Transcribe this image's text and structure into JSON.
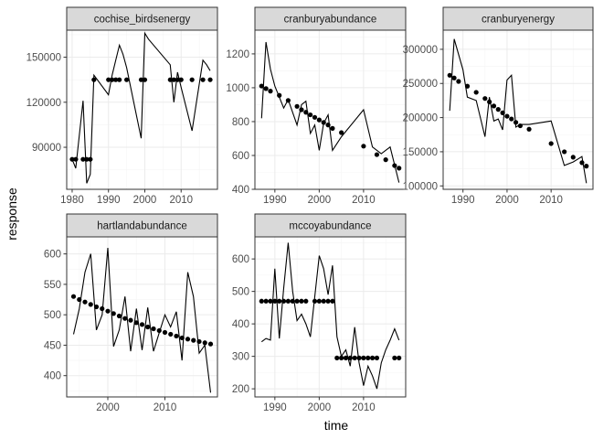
{
  "chart_data": {
    "type": "line",
    "xlabel": "time",
    "ylabel": "response",
    "grid": true,
    "legend": "none",
    "panels": [
      {
        "name": "cochise_birdsenergy",
        "xlim": [
          1978.5,
          2020
        ],
        "ylim": [
          62000,
          168000
        ],
        "xticks": [
          1980,
          1990,
          2000,
          2010
        ],
        "yticks": [
          90000,
          120000,
          150000
        ],
        "ytick_labels": [
          "90000",
          "120000",
          "150000"
        ],
        "line": {
          "x": [
            1980,
            1981,
            1983,
            1984,
            1985,
            1986,
            1990,
            1991,
            1992,
            1993,
            1994,
            1995,
            1999,
            2000,
            2001,
            2007,
            2008,
            2009,
            2010,
            2013,
            2016,
            2017,
            2018
          ],
          "y": [
            82000,
            76000,
            121000,
            66000,
            72000,
            138000,
            125000,
            138000,
            148000,
            158000,
            152000,
            143000,
            96000,
            166000,
            162000,
            145000,
            120000,
            140000,
            130000,
            101000,
            148000,
            145000,
            141000
          ]
        },
        "points": {
          "x": [
            1980,
            1981,
            1983,
            1984,
            1985,
            1986,
            1990,
            1991,
            1992,
            1993,
            1995,
            1999,
            2000,
            2007,
            2008,
            2009,
            2010,
            2013,
            2016,
            2018
          ],
          "y": [
            82000,
            82000,
            82000,
            82000,
            82000,
            135000,
            135000,
            135000,
            135000,
            135000,
            135000,
            135000,
            135000,
            135000,
            135000,
            135000,
            135000,
            135000,
            135000,
            135000
          ]
        }
      },
      {
        "name": "cranburyabundance",
        "xlim": [
          1985.5,
          2019.5
        ],
        "ylim": [
          400,
          1340
        ],
        "xticks": [
          1990,
          2000,
          2010
        ],
        "yticks": [
          400,
          600,
          800,
          1000,
          1200
        ],
        "ytick_labels": [
          "400",
          "600",
          "800",
          "1000",
          "1200"
        ],
        "line": {
          "x": [
            1987,
            1988,
            1989,
            1990,
            1992,
            1993,
            1995,
            1996,
            1997,
            1998,
            1999,
            2000,
            2001,
            2002,
            2003,
            2005,
            2010,
            2012,
            2014,
            2016,
            2018
          ],
          "y": [
            820,
            1270,
            1110,
            1010,
            880,
            930,
            780,
            900,
            920,
            730,
            780,
            630,
            790,
            840,
            630,
            710,
            870,
            650,
            610,
            650,
            440
          ]
        },
        "points": {
          "x": [
            1987,
            1988,
            1989,
            1991,
            1993,
            1995,
            1996,
            1997,
            1998,
            1999,
            2000,
            2001,
            2002,
            2003,
            2005,
            2010,
            2013,
            2015,
            2017,
            2018
          ],
          "y": [
            1010,
            995,
            980,
            955,
            925,
            890,
            870,
            855,
            840,
            825,
            810,
            795,
            780,
            760,
            735,
            655,
            605,
            575,
            540,
            525
          ]
        }
      },
      {
        "name": "cranburyenergy",
        "xlim": [
          1985.5,
          2019.5
        ],
        "ylim": [
          95000,
          328000
        ],
        "xticks": [
          1990,
          2000,
          2010
        ],
        "yticks": [
          100000,
          150000,
          200000,
          250000,
          300000
        ],
        "ytick_labels": [
          "100000",
          "150000",
          "200000",
          "250000",
          "300000"
        ],
        "line": {
          "x": [
            1987,
            1988,
            1990,
            1991,
            1993,
            1995,
            1996,
            1997,
            1998,
            1999,
            2000,
            2001,
            2002,
            2003,
            2005,
            2010,
            2013,
            2015,
            2017,
            2018
          ],
          "y": [
            210000,
            315000,
            270000,
            230000,
            225000,
            172000,
            230000,
            195000,
            198000,
            182000,
            255000,
            262000,
            186000,
            190000,
            190000,
            195000,
            130000,
            135000,
            143000,
            104000
          ]
        },
        "points": {
          "x": [
            1987,
            1988,
            1989,
            1991,
            1993,
            1995,
            1996,
            1997,
            1998,
            1999,
            2000,
            2001,
            2002,
            2003,
            2005,
            2010,
            2013,
            2015,
            2017,
            2018
          ],
          "y": [
            262000,
            258000,
            253000,
            246000,
            237000,
            228000,
            223000,
            217000,
            212000,
            207000,
            202000,
            198000,
            193000,
            188000,
            183000,
            162000,
            150000,
            142000,
            134000,
            129000
          ]
        }
      },
      {
        "name": "hartlandabundance",
        "xlim": [
          1992.8,
          2019.2
        ],
        "ylim": [
          365,
          628
        ],
        "xticks": [
          2000,
          2010
        ],
        "yticks": [
          400,
          450,
          500,
          550,
          600
        ],
        "ytick_labels": [
          "400",
          "450",
          "500",
          "550",
          "600"
        ],
        "line": {
          "x": [
            1994,
            1995,
            1996,
            1997,
            1998,
            1999,
            2000,
            2001,
            2002,
            2003,
            2004,
            2005,
            2006,
            2007,
            2008,
            2009,
            2010,
            2011,
            2012,
            2013,
            2014,
            2015,
            2016,
            2017,
            2018
          ],
          "y": [
            468,
            510,
            570,
            600,
            475,
            500,
            610,
            448,
            475,
            530,
            440,
            510,
            442,
            512,
            440,
            470,
            500,
            480,
            505,
            425,
            570,
            530,
            437,
            450,
            372
          ]
        },
        "points": {
          "x": [
            1994,
            1995,
            1996,
            1997,
            1998,
            1999,
            2000,
            2001,
            2002,
            2003,
            2004,
            2005,
            2006,
            2007,
            2008,
            2009,
            2010,
            2011,
            2012,
            2013,
            2014,
            2015,
            2016,
            2017,
            2018
          ],
          "y": [
            530,
            525,
            521,
            517,
            513,
            510,
            506,
            502,
            498,
            494,
            491,
            487,
            484,
            480,
            477,
            474,
            471,
            468,
            465,
            462,
            460,
            458,
            456,
            454,
            452
          ]
        }
      },
      {
        "name": "mccoyabundance",
        "xlim": [
          1985.5,
          2019.5
        ],
        "ylim": [
          175,
          668
        ],
        "xticks": [
          1990,
          2000,
          2010
        ],
        "yticks": [
          200,
          300,
          400,
          500,
          600
        ],
        "ytick_labels": [
          "200",
          "300",
          "400",
          "500",
          "600"
        ],
        "line": {
          "x": [
            1987,
            1988,
            1989,
            1990,
            1991,
            1992,
            1993,
            1994,
            1995,
            1996,
            1997,
            1998,
            2000,
            2001,
            2002,
            2003,
            2004,
            2005,
            2006,
            2007,
            2008,
            2009,
            2010,
            2011,
            2012,
            2013,
            2014,
            2015,
            2016,
            2017,
            2018
          ],
          "y": [
            345,
            355,
            350,
            570,
            355,
            510,
            650,
            500,
            410,
            430,
            400,
            360,
            610,
            570,
            490,
            580,
            360,
            300,
            320,
            270,
            390,
            280,
            210,
            270,
            240,
            200,
            280,
            320,
            350,
            385,
            350
          ]
        },
        "points": {
          "x": [
            1987,
            1988,
            1989,
            1990,
            1991,
            1992,
            1993,
            1994,
            1995,
            1996,
            1997,
            1999,
            2000,
            2001,
            2002,
            2003,
            2004,
            2005,
            2006,
            2007,
            2008,
            2009,
            2010,
            2011,
            2012,
            2013,
            2017,
            2018
          ],
          "y": [
            470,
            470,
            470,
            470,
            470,
            470,
            470,
            470,
            470,
            470,
            470,
            470,
            470,
            470,
            470,
            470,
            295,
            295,
            295,
            295,
            295,
            295,
            295,
            295,
            295,
            295,
            295,
            295
          ]
        }
      }
    ]
  }
}
